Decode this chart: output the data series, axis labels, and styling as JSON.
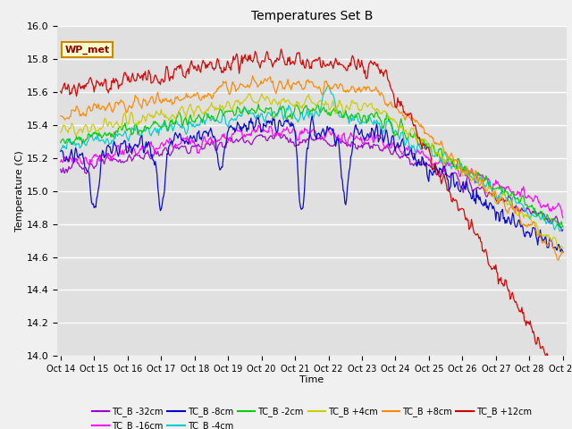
{
  "title": "Temperatures Set B",
  "xlabel": "Time",
  "ylabel": "Temperature (C)",
  "ylim": [
    14.0,
    16.0
  ],
  "yticks": [
    14.0,
    14.2,
    14.4,
    14.6,
    14.8,
    15.0,
    15.2,
    15.4,
    15.6,
    15.8,
    16.0
  ],
  "legend_label": "WP_met",
  "series_labels": [
    "TC_B -32cm",
    "TC_B -16cm",
    "TC_B -8cm",
    "TC_B -4cm",
    "TC_B -2cm",
    "TC_B +4cm",
    "TC_B +8cm",
    "TC_B +12cm"
  ],
  "series_colors": [
    "#9900cc",
    "#ff00ff",
    "#0000cc",
    "#00cccc",
    "#00cc00",
    "#cccc00",
    "#ff8800",
    "#cc0000"
  ],
  "bg_color": "#e8e8e8",
  "plot_bg": "#e0e0e0",
  "n_points": 600
}
